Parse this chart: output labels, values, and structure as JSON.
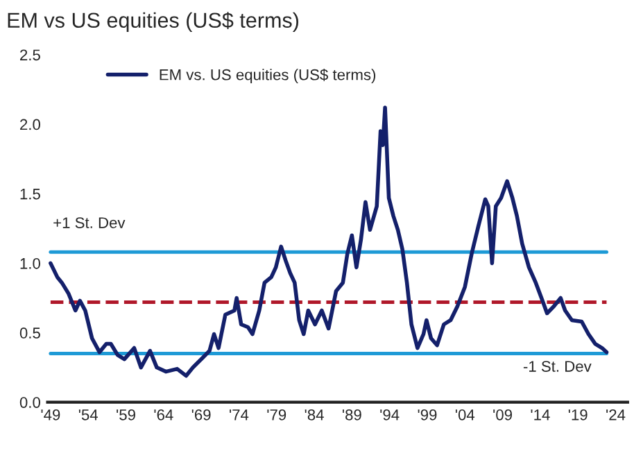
{
  "chart_data": {
    "type": "line",
    "title": "EM vs US equities (US$ terms)",
    "x": [
      1949.0,
      1949.9,
      1950.5,
      1951.4,
      1952.3,
      1952.9,
      1953.6,
      1954.5,
      1955.5,
      1956.4,
      1957.0,
      1957.9,
      1958.8,
      1960.1,
      1961.0,
      1962.2,
      1963.1,
      1964.3,
      1965.8,
      1967.0,
      1967.9,
      1969.2,
      1970.1,
      1970.7,
      1971.3,
      1972.2,
      1973.4,
      1973.7,
      1974.3,
      1975.2,
      1975.8,
      1976.7,
      1977.4,
      1978.3,
      1978.9,
      1979.6,
      1980.2,
      1980.8,
      1981.4,
      1982.0,
      1982.6,
      1983.2,
      1984.1,
      1985.0,
      1985.9,
      1986.9,
      1987.8,
      1988.4,
      1989.0,
      1989.6,
      1990.2,
      1990.8,
      1991.4,
      1992.3,
      1992.8,
      1993.1,
      1993.4,
      1993.9,
      1994.5,
      1995.1,
      1995.7,
      1996.3,
      1996.9,
      1997.7,
      1998.5,
      1998.9,
      1999.5,
      2000.3,
      2001.2,
      2002.1,
      2003.0,
      2004.0,
      2004.9,
      2005.8,
      2006.7,
      2007.1,
      2007.6,
      2008.1,
      2008.8,
      2009.6,
      2010.3,
      2010.9,
      2011.6,
      2012.5,
      2013.4,
      2014.3,
      2014.9,
      2015.8,
      2016.7,
      2017.3,
      2018.2,
      2019.5,
      2020.4,
      2021.3,
      2022.2,
      2022.8
    ],
    "series": [
      {
        "name": "EM vs. US equities (US$ terms)",
        "color": "#14206b",
        "values": [
          1.0,
          0.9,
          0.86,
          0.78,
          0.66,
          0.73,
          0.66,
          0.46,
          0.36,
          0.42,
          0.42,
          0.34,
          0.31,
          0.39,
          0.25,
          0.37,
          0.25,
          0.22,
          0.24,
          0.19,
          0.25,
          0.32,
          0.37,
          0.49,
          0.39,
          0.63,
          0.66,
          0.75,
          0.56,
          0.54,
          0.49,
          0.66,
          0.86,
          0.9,
          0.97,
          1.12,
          1.02,
          0.93,
          0.86,
          0.59,
          0.49,
          0.66,
          0.56,
          0.66,
          0.53,
          0.8,
          0.86,
          1.07,
          1.2,
          0.97,
          1.17,
          1.44,
          1.24,
          1.41,
          1.95,
          1.85,
          2.12,
          1.47,
          1.34,
          1.24,
          1.1,
          0.86,
          0.56,
          0.39,
          0.49,
          0.59,
          0.46,
          0.41,
          0.56,
          0.59,
          0.69,
          0.83,
          1.07,
          1.27,
          1.46,
          1.41,
          1.0,
          1.41,
          1.47,
          1.59,
          1.47,
          1.34,
          1.14,
          0.97,
          0.86,
          0.73,
          0.64,
          0.69,
          0.75,
          0.66,
          0.59,
          0.58,
          0.49,
          0.42,
          0.39,
          0.36
        ]
      }
    ],
    "xlim": [
      1948.6,
      2025.6
    ],
    "ylim": [
      0,
      2.5
    ],
    "xticks": [
      {
        "value": 1949,
        "label": "'49"
      },
      {
        "value": 1954,
        "label": "'54"
      },
      {
        "value": 1959,
        "label": "'59"
      },
      {
        "value": 1964,
        "label": "'64"
      },
      {
        "value": 1969,
        "label": "'69"
      },
      {
        "value": 1974,
        "label": "'74"
      },
      {
        "value": 1979,
        "label": "'79"
      },
      {
        "value": 1984,
        "label": "'84"
      },
      {
        "value": 1989,
        "label": "'89"
      },
      {
        "value": 1994,
        "label": "'94"
      },
      {
        "value": 1999,
        "label": "'99"
      },
      {
        "value": 2004,
        "label": "'04"
      },
      {
        "value": 2009,
        "label": "'09"
      },
      {
        "value": 2014,
        "label": "'14"
      },
      {
        "value": 2019,
        "label": "'19"
      },
      {
        "value": 2024,
        "label": "'24"
      }
    ],
    "yticks": [
      {
        "value": 0,
        "label": "0.0"
      },
      {
        "value": 0.5,
        "label": "0.5"
      },
      {
        "value": 1.0,
        "label": "1.0"
      },
      {
        "value": 1.5,
        "label": "1.5"
      },
      {
        "value": 2.0,
        "label": "2.0"
      },
      {
        "value": 2.5,
        "label": "2.5"
      }
    ],
    "ref_lines": [
      {
        "axis": "y",
        "value": 1.08,
        "label": "+1 St. Dev",
        "color": "#1e9ad6",
        "line_style": "solid"
      },
      {
        "axis": "y",
        "value": 0.72,
        "label": null,
        "color": "#b0182a",
        "line_style": "dashed"
      },
      {
        "axis": "y",
        "value": 0.35,
        "label": "-1 St. Dev",
        "color": "#1e9ad6",
        "line_style": "solid"
      }
    ],
    "grid": false,
    "legend": "top left",
    "marker": "none",
    "line_style": "solid"
  }
}
